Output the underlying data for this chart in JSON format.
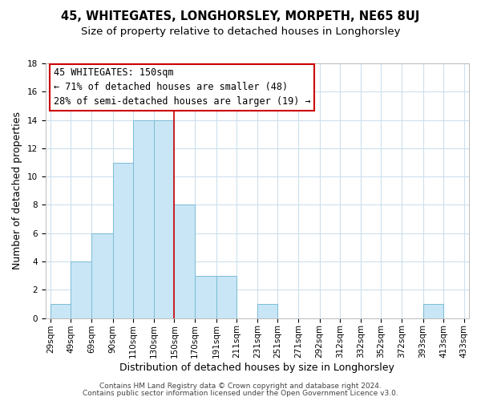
{
  "title": "45, WHITEGATES, LONGHORSLEY, MORPETH, NE65 8UJ",
  "subtitle": "Size of property relative to detached houses in Longhorsley",
  "xlabel": "Distribution of detached houses by size in Longhorsley",
  "ylabel": "Number of detached properties",
  "footer_line1": "Contains HM Land Registry data © Crown copyright and database right 2024.",
  "footer_line2": "Contains public sector information licensed under the Open Government Licence v3.0.",
  "bin_edges": [
    29,
    49,
    69,
    90,
    110,
    130,
    150,
    170,
    191,
    211,
    231,
    251,
    271,
    292,
    312,
    332,
    352,
    372,
    393,
    413,
    433
  ],
  "bin_labels": [
    "29sqm",
    "49sqm",
    "69sqm",
    "90sqm",
    "110sqm",
    "130sqm",
    "150sqm",
    "170sqm",
    "191sqm",
    "211sqm",
    "231sqm",
    "251sqm",
    "271sqm",
    "292sqm",
    "312sqm",
    "332sqm",
    "352sqm",
    "372sqm",
    "393sqm",
    "413sqm",
    "433sqm"
  ],
  "counts": [
    1,
    4,
    6,
    11,
    14,
    14,
    8,
    3,
    3,
    0,
    1,
    0,
    0,
    0,
    0,
    0,
    0,
    0,
    1,
    0
  ],
  "bar_color": "#c8e6f5",
  "bar_edge_color": "#7bbcd5",
  "reference_line_x": 150,
  "reference_line_color": "#cc0000",
  "annotation_line1": "45 WHITEGATES: 150sqm",
  "annotation_line2": "← 71% of detached houses are smaller (48)",
  "annotation_line3": "28% of semi-detached houses are larger (19) →",
  "ylim": [
    0,
    18
  ],
  "yticks": [
    0,
    2,
    4,
    6,
    8,
    10,
    12,
    14,
    16,
    18
  ],
  "background_color": "#ffffff",
  "grid_color": "#cce0ee",
  "title_fontsize": 10.5,
  "subtitle_fontsize": 9.5,
  "axis_label_fontsize": 9,
  "tick_fontsize": 7.5,
  "annotation_fontsize": 8.5,
  "footer_fontsize": 6.5
}
